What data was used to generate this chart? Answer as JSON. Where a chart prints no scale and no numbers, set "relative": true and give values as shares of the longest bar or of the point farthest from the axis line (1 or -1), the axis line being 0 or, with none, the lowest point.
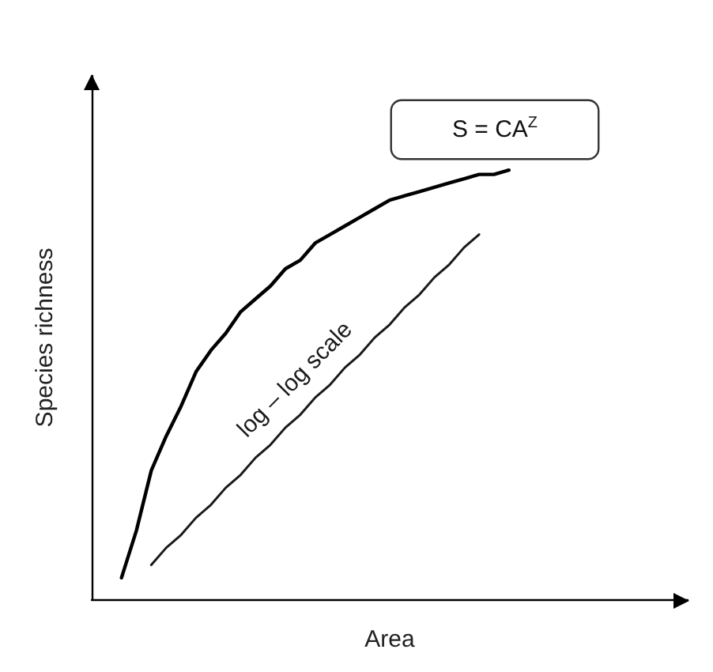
{
  "chart_data": {
    "type": "line",
    "relative": true,
    "xlabel": "Area",
    "ylabel": "Species richness",
    "marker": "none",
    "categories": [
      null,
      null,
      null,
      null,
      null,
      null,
      null,
      null,
      null,
      null,
      null,
      null,
      null,
      null,
      null,
      null,
      null,
      null,
      null,
      null,
      null,
      null,
      null,
      null,
      null,
      null,
      null,
      null,
      null,
      null,
      null,
      null,
      null,
      null,
      null,
      null,
      null,
      null,
      null,
      null,
      null
    ],
    "series": [
      {
        "color": "#000000",
        "values": [
          null,
          null,
          0.05,
          0.16,
          0.3,
          0.38,
          0.45,
          0.53,
          0.58,
          0.62,
          0.67,
          0.7,
          0.73,
          0.77,
          0.79,
          0.83,
          0.85,
          0.87,
          0.89,
          0.91,
          0.93,
          0.94,
          0.95,
          0.96,
          0.97,
          0.98,
          0.99,
          0.99,
          1,
          null,
          null,
          null,
          null,
          null,
          null,
          null,
          null,
          null,
          null,
          null,
          null
        ]
      },
      {
        "name": "log – log scale",
        "color": "#1a1a1a",
        "values": [
          null,
          null,
          null,
          null,
          0.08,
          0.12,
          0.15,
          0.19,
          0.22,
          0.26,
          0.29,
          0.33,
          0.36,
          0.4,
          0.43,
          0.47,
          0.5,
          0.54,
          0.57,
          0.61,
          0.64,
          0.68,
          0.71,
          0.75,
          0.78,
          0.82,
          0.85,
          null,
          null,
          null,
          null,
          null,
          null,
          null,
          null,
          null,
          null,
          null,
          null,
          null,
          null
        ]
      }
    ],
    "annotations": [
      "S = CA$^{Z}$"
    ]
  }
}
